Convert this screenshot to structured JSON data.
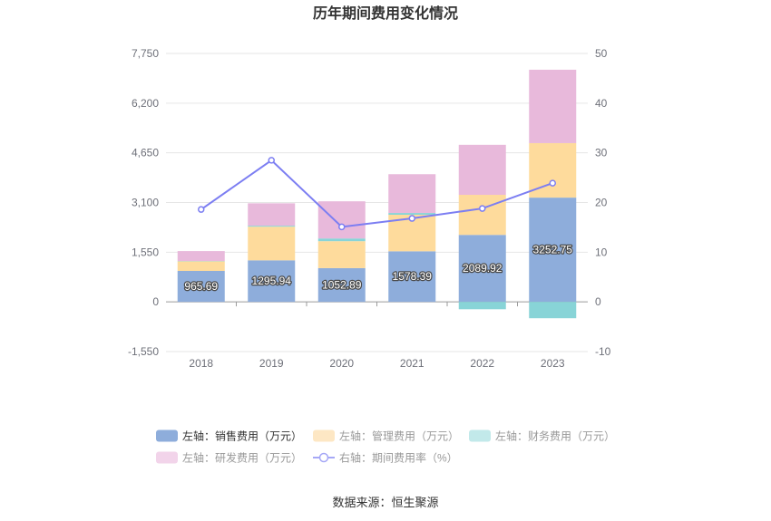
{
  "source": "数据来源：恒生聚源",
  "chart_data": {
    "type": "bar",
    "title": "历年期间费用变化情况",
    "stacked": true,
    "categories": [
      "2018",
      "2019",
      "2020",
      "2021",
      "2022",
      "2023"
    ],
    "y_left": {
      "min": -1550,
      "max": 7750,
      "tick_labels": [
        "7,750",
        "6,200",
        "4,650",
        "3,100",
        "1,550",
        "0",
        "-1,550"
      ]
    },
    "y_right": {
      "min": -10,
      "max": 50,
      "tick_labels": [
        "50",
        "40",
        "30",
        "20",
        "10",
        "0",
        "-10"
      ]
    },
    "grid": true,
    "legend_position": "bottom",
    "series": [
      {
        "name": "左轴：销售费用（万元）",
        "type": "bar",
        "axis": "left",
        "color": "#8eaddb",
        "legend_color": "#8eaddb",
        "data_labels": true,
        "values": [
          965.69,
          1295.94,
          1052.89,
          1578.39,
          2089.92,
          3252.75
        ]
      },
      {
        "name": "左轴：管理费用（万元）",
        "type": "bar",
        "axis": "left",
        "color": "#fedb9c",
        "legend_color": "#fde7c4",
        "values": [
          300,
          1050,
          840,
          1140,
          1250,
          1700
        ]
      },
      {
        "name": "左轴：财务费用（万元）",
        "type": "bar",
        "axis": "left",
        "color": "#88d4d7",
        "legend_color": "#c2e9ea",
        "values": [
          10,
          30,
          85,
          55,
          -230,
          -510
        ]
      },
      {
        "name": "左轴：研发费用（万元）",
        "type": "bar",
        "axis": "left",
        "color": "#e8b9db",
        "legend_color": "#f2d4ea",
        "values": [
          310,
          700,
          1160,
          1210,
          1560,
          2290
        ]
      },
      {
        "name": "右轴：期间费用率（%）",
        "type": "line",
        "axis": "right",
        "color": "#7c7ef2",
        "legend_color": "#a6a8f6",
        "values": [
          18.6,
          28.5,
          15.1,
          16.8,
          18.8,
          23.9
        ]
      }
    ]
  }
}
